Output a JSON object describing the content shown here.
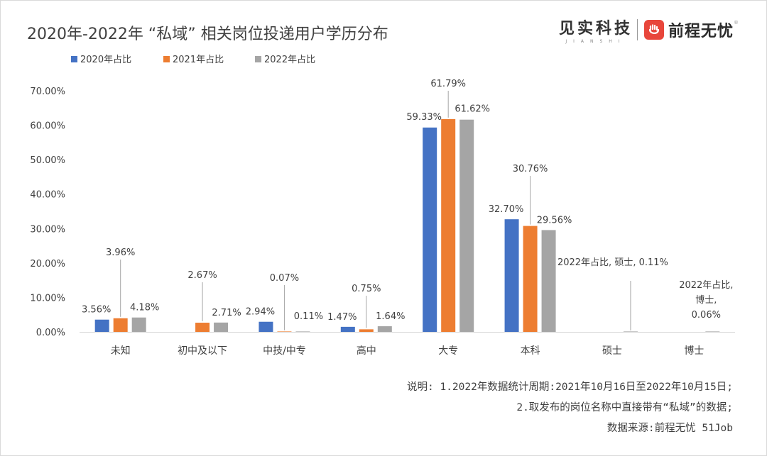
{
  "title": "2020年-2022年 “私域” 相关岗位投递用户学历分布",
  "brands": {
    "jianshi": "见实科技",
    "jianshi_sub": "JIANSHI",
    "qcwy": "前程无忧",
    "qcwy_reg": "®"
  },
  "notes": [
    "说明: 1.2022年数据统计周期:2021年10月16日至2022年10月15日;",
    "2.取发布的岗位名称中直接带有“私域”的数据;",
    "数据来源:前程无忧 51Job"
  ],
  "colors": {
    "series_2020": "#4472c4",
    "series_2021": "#ed7d31",
    "series_2022": "#a5a5a5",
    "axis": "#d9d9d9",
    "leader": "#a6a6a6"
  },
  "chart_data": {
    "type": "bar",
    "title": "2020年-2022年 “私域” 相关岗位投递用户学历分布",
    "xlabel": "",
    "ylabel": "",
    "ylim": [
      0,
      70
    ],
    "yticks": [
      "0.00%",
      "10.00%",
      "20.00%",
      "30.00%",
      "40.00%",
      "50.00%",
      "60.00%",
      "70.00%"
    ],
    "grid": false,
    "legend": "top-left",
    "categories": [
      "未知",
      "初中及以下",
      "中技/中专",
      "高中",
      "大专",
      "本科",
      "硕士",
      "博士"
    ],
    "series": [
      {
        "name": "2020年占比",
        "values": [
          3.56,
          null,
          2.94,
          1.47,
          59.33,
          32.7,
          null,
          null
        ],
        "labels": [
          "3.56%",
          "",
          "2.94%",
          "1.47%",
          "59.33%",
          "32.70%",
          "",
          ""
        ]
      },
      {
        "name": "2021年占比",
        "values": [
          3.96,
          2.67,
          0.07,
          0.75,
          61.79,
          30.76,
          null,
          null
        ],
        "labels": [
          "3.96%",
          "2.67%",
          "0.07%",
          "0.75%",
          "61.79%",
          "30.76%",
          "",
          ""
        ]
      },
      {
        "name": "2022年占比",
        "values": [
          4.18,
          2.71,
          0.11,
          1.64,
          61.62,
          29.56,
          0.11,
          0.06
        ],
        "labels": [
          "4.18%",
          "2.71%",
          "0.11%",
          "1.64%",
          "61.62%",
          "29.56%",
          "2022年占比, 硕士, 0.11%",
          "2022年占比,|博士,|0.06%"
        ]
      }
    ]
  }
}
